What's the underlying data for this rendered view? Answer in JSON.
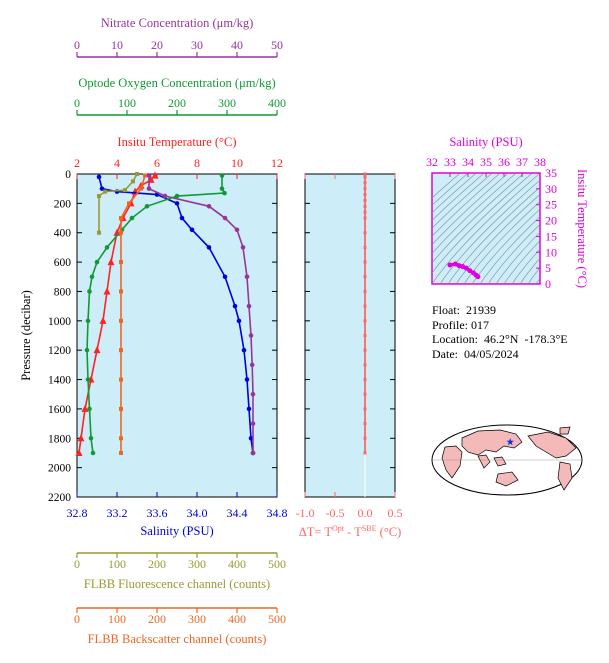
{
  "colors": {
    "nitrate": "#993399",
    "oxygen": "#119933",
    "temperature": "#ff2222",
    "salinity": "#0000dd",
    "fluorescence": "#999933",
    "backscatter": "#ee6622",
    "dt": "#ff6666",
    "ts": "#dd00dd",
    "panel_bg": "#cdeef8"
  },
  "axes": {
    "nitrate": {
      "title": "Nitrate Concentration (μm/kg)",
      "ticks": [
        "0",
        "10",
        "20",
        "30",
        "40",
        "50"
      ]
    },
    "oxygen": {
      "title": "Optode Oxygen Concentration (μm/kg)",
      "ticks": [
        "0",
        "100",
        "200",
        "300",
        "400"
      ]
    },
    "temperature": {
      "title": "Insitu Temperature (°C)",
      "ticks": [
        "2",
        "4",
        "6",
        "8",
        "10",
        "12"
      ]
    },
    "salinity": {
      "title": "Salinity (PSU)",
      "ticks": [
        "32.8",
        "33.2",
        "33.6",
        "34.0",
        "34.4",
        "34.8"
      ]
    },
    "pressure": {
      "title": "Pressure (decibar)",
      "ticks": [
        "0",
        "200",
        "400",
        "600",
        "800",
        "1000",
        "1200",
        "1400",
        "1600",
        "1800",
        "2000",
        "2200"
      ]
    },
    "dt": {
      "title_parts": [
        "ΔT= T",
        "Opt",
        " - T",
        "SBE",
        " (°C)"
      ],
      "ticks": [
        "-1.0",
        "-0.5",
        "0.0",
        "0.5"
      ]
    },
    "fluorescence": {
      "title": "FLBB Fluorescence channel (counts)",
      "ticks": [
        "0",
        "100",
        "200",
        "300",
        "400",
        "500"
      ]
    },
    "backscatter": {
      "title": "FLBB Backscatter channel (counts)",
      "ticks": [
        "0",
        "100",
        "200",
        "300",
        "400",
        "500"
      ]
    },
    "ts_salinity": {
      "title": "Salinity (PSU)",
      "ticks": [
        "32",
        "33",
        "34",
        "35",
        "36",
        "37",
        "38"
      ]
    },
    "ts_temperature": {
      "title": "Insitu Temperature (°C)",
      "ticks": [
        "0",
        "5",
        "10",
        "15",
        "20",
        "25",
        "30",
        "35"
      ]
    }
  },
  "info": {
    "float_label": "Float:",
    "float": "21939",
    "profile_label": "Profile:",
    "profile": "017",
    "location_label": "Location:",
    "location": "46.2°N  -178.3°E",
    "date_label": "Date:",
    "date": "04/05/2024"
  },
  "map": {
    "icon": "world-map-icon",
    "marker": "float-location-star-icon",
    "lat": 46.2,
    "lon": -178.3
  },
  "chart_data": [
    {
      "type": "line",
      "name": "profile-panel",
      "y_axis": "pressure",
      "ylim": [
        2200,
        0
      ],
      "series": [
        {
          "axis": "temperature",
          "xlim": [
            2,
            12
          ],
          "marker": "triangle",
          "points": [
            [
              5.9,
              10
            ],
            [
              5.7,
              40
            ],
            [
              5.2,
              80
            ],
            [
              4.9,
              120
            ],
            [
              4.7,
              200
            ],
            [
              4.3,
              300
            ],
            [
              4.0,
              400
            ],
            [
              3.7,
              600
            ],
            [
              3.5,
              800
            ],
            [
              3.3,
              1000
            ],
            [
              3.0,
              1200
            ],
            [
              2.7,
              1400
            ],
            [
              2.4,
              1600
            ],
            [
              2.2,
              1800
            ],
            [
              2.1,
              1900
            ]
          ]
        },
        {
          "axis": "salinity",
          "xlim": [
            32.8,
            34.8
          ],
          "marker": "circle",
          "points": [
            [
              33.02,
              20
            ],
            [
              33.05,
              100
            ],
            [
              33.2,
              120
            ],
            [
              33.6,
              140
            ],
            [
              33.8,
              200
            ],
            [
              33.85,
              300
            ],
            [
              33.95,
              380
            ],
            [
              34.12,
              500
            ],
            [
              34.28,
              700
            ],
            [
              34.38,
              900
            ],
            [
              34.42,
              1000
            ],
            [
              34.47,
              1200
            ],
            [
              34.5,
              1400
            ],
            [
              34.52,
              1600
            ],
            [
              34.54,
              1800
            ],
            [
              34.56,
              1900
            ]
          ]
        },
        {
          "axis": "nitrate",
          "xlim": [
            0,
            50
          ],
          "marker": "circle",
          "points": [
            [
              18,
              10
            ],
            [
              18,
              100
            ],
            [
              22,
              150
            ],
            [
              33,
              220
            ],
            [
              37,
              300
            ],
            [
              40,
              380
            ],
            [
              41.5,
              500
            ],
            [
              42.5,
              700
            ],
            [
              43,
              900
            ],
            [
              43.5,
              1100
            ],
            [
              43.8,
              1300
            ],
            [
              44,
              1500
            ],
            [
              44,
              1700
            ],
            [
              44,
              1900
            ]
          ]
        },
        {
          "axis": "oxygen",
          "xlim": [
            0,
            400
          ],
          "marker": "circle",
          "points": [
            [
              290,
              10
            ],
            [
              290,
              100
            ],
            [
              295,
              130
            ],
            [
              200,
              150
            ],
            [
              140,
              220
            ],
            [
              110,
              300
            ],
            [
              90,
              380
            ],
            [
              60,
              500
            ],
            [
              40,
              600
            ],
            [
              30,
              700
            ],
            [
              25,
              800
            ],
            [
              22,
              1000
            ],
            [
              20,
              1200
            ],
            [
              22,
              1400
            ],
            [
              25,
              1600
            ],
            [
              28,
              1800
            ],
            [
              32,
              1900
            ]
          ]
        },
        {
          "axis": "fluorescence",
          "xlim": [
            0,
            500
          ],
          "marker": "square",
          "points": [
            [
              150,
              0
            ],
            [
              140,
              50
            ],
            [
              120,
              110
            ],
            [
              70,
              120
            ],
            [
              55,
              150
            ],
            [
              55,
              400
            ]
          ]
        },
        {
          "axis": "backscatter",
          "xlim": [
            0,
            500
          ],
          "marker": "square",
          "points": [
            [
              170,
              10
            ],
            [
              160,
              100
            ],
            [
              130,
              200
            ],
            [
              110,
              300
            ],
            [
              110,
              400
            ],
            [
              110,
              600
            ],
            [
              110,
              800
            ],
            [
              110,
              1000
            ],
            [
              110,
              1200
            ],
            [
              110,
              1400
            ],
            [
              110,
              1600
            ],
            [
              110,
              1800
            ],
            [
              110,
              1900
            ]
          ]
        }
      ]
    },
    {
      "type": "line",
      "name": "delta-t-panel",
      "xlim": [
        -1.0,
        0.5
      ],
      "ylim": [
        2200,
        0
      ],
      "series": [
        {
          "name": "ΔT",
          "points": [
            [
              0.0,
              0
            ],
            [
              0.0,
              20
            ],
            [
              0.0,
              60
            ],
            [
              0.0,
              100
            ],
            [
              0.0,
              140
            ],
            [
              0.0,
              180
            ],
            [
              0.0,
              220
            ],
            [
              0.0,
              260
            ],
            [
              0.0,
              300
            ],
            [
              0.0,
              400
            ],
            [
              0.0,
              500
            ],
            [
              0.0,
              600
            ],
            [
              0.0,
              700
            ],
            [
              0.0,
              800
            ],
            [
              0.0,
              900
            ],
            [
              0.0,
              1000
            ],
            [
              0.0,
              1100
            ],
            [
              0.0,
              1200
            ],
            [
              0.0,
              1300
            ],
            [
              0.0,
              1400
            ],
            [
              0.0,
              1500
            ],
            [
              0.0,
              1600
            ],
            [
              0.0,
              1700
            ],
            [
              0.0,
              1800
            ],
            [
              0.0,
              1900
            ]
          ]
        }
      ]
    },
    {
      "type": "scatter",
      "name": "ts-diagram",
      "xlim": [
        32,
        38
      ],
      "ylim": [
        0,
        35
      ],
      "series": [
        {
          "name": "T-S",
          "points": [
            [
              33.0,
              6.0
            ],
            [
              33.3,
              6.3
            ],
            [
              33.5,
              5.8
            ],
            [
              33.7,
              5.5
            ],
            [
              33.9,
              5.0
            ],
            [
              34.1,
              4.2
            ],
            [
              34.3,
              3.5
            ],
            [
              34.45,
              2.8
            ],
            [
              34.55,
              2.3
            ]
          ]
        }
      ]
    }
  ]
}
